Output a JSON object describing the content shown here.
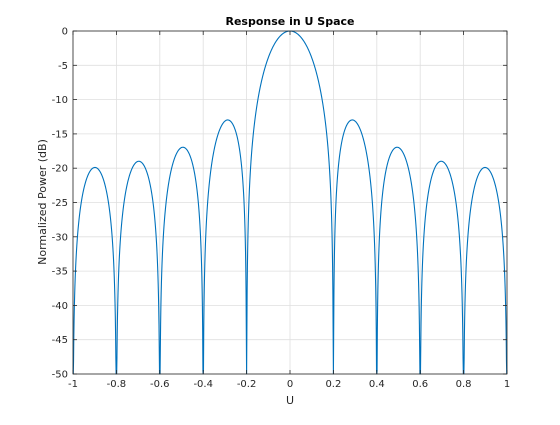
{
  "chart_data": {
    "type": "line",
    "title": "Response in U Space",
    "xlabel": "U",
    "ylabel": "Normalized Power (dB)",
    "xlim": [
      -1,
      1
    ],
    "ylim": [
      -50,
      0
    ],
    "grid": true,
    "x_ticks": [
      -1,
      -0.8,
      -0.6,
      -0.4,
      -0.2,
      0,
      0.2,
      0.4,
      0.6,
      0.8,
      1
    ],
    "x_tick_labels": [
      "-1",
      "-0.8",
      "-0.6",
      "-0.4",
      "-0.2",
      "0",
      "0.2",
      "0.4",
      "0.6",
      "0.8",
      "1"
    ],
    "y_ticks": [
      0,
      -5,
      -10,
      -15,
      -20,
      -25,
      -30,
      -35,
      -40,
      -45,
      -50
    ],
    "y_tick_labels": [
      "0",
      "-5",
      "-10",
      "-15",
      "-20",
      "-25",
      "-30",
      "-35",
      "-40",
      "-45",
      "-50"
    ],
    "line_color": "#0072bd",
    "series": [
      {
        "elements": 10,
        "x": [
          -1,
          -0.95,
          -0.9,
          -0.85,
          -0.8,
          -0.75,
          -0.7,
          -0.65,
          -0.6,
          -0.55,
          -0.5,
          -0.45,
          -0.4,
          -0.35,
          -0.3,
          -0.25,
          -0.2,
          -0.15,
          -0.1,
          -0.05,
          0,
          0.05,
          0.1,
          0.15,
          0.2,
          0.25,
          0.3,
          0.35,
          0.4,
          0.45,
          0.5,
          0.55,
          0.6,
          0.65,
          0.7,
          0.75,
          0.8,
          0.85,
          0.9,
          0.95,
          1
        ],
        "y": [
          -50,
          -25.6,
          -21.4,
          -25.6,
          -50,
          -22.6,
          -19.7,
          -22.6,
          -50,
          -19.6,
          -17.4,
          -19.6,
          -50,
          -15.3,
          -13.0,
          -15.3,
          -50,
          -5.9,
          -1.6,
          -0.4,
          0,
          -0.4,
          -1.6,
          -5.9,
          -50,
          -15.3,
          -13.0,
          -15.3,
          -50,
          -19.6,
          -17.4,
          -19.6,
          -50,
          -22.6,
          -19.7,
          -22.6,
          -50,
          -25.6,
          -21.4,
          -25.6,
          -50
        ]
      }
    ]
  }
}
